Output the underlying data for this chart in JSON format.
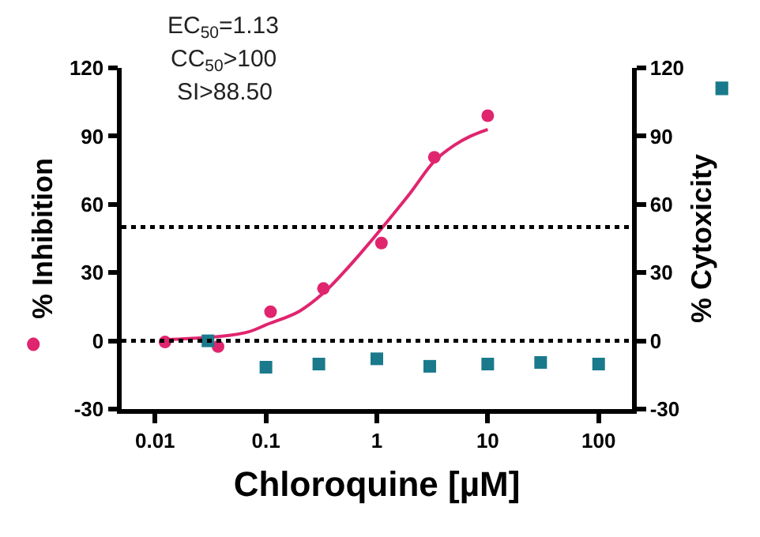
{
  "chart_data": {
    "type": "scatter",
    "xlabel": "Chloroquine [µM]",
    "ylabel": "% Inhibition",
    "y2label": "% Cytoxicity",
    "log": "x",
    "xlim": [
      0.005,
      200
    ],
    "xticks": [
      0.01,
      0.1,
      1,
      10,
      100
    ],
    "ylim": [
      -30,
      120
    ],
    "yticks": [
      -30,
      0,
      30,
      60,
      90,
      120
    ],
    "y2lim": [
      -30,
      120
    ],
    "y2ticks": [
      -30,
      0,
      30,
      60,
      90,
      120
    ],
    "series": [
      {
        "marker": "circle",
        "color": "#e0256f",
        "axis": "y",
        "x": [
          0.0123,
          0.037,
          0.11,
          0.33,
          1.1,
          3.3,
          10
        ],
        "values": [
          -0.5,
          -2.5,
          12.8,
          23,
          43,
          80.7,
          99
        ]
      },
      {
        "type": "line",
        "marker": "none",
        "color": "#e0256f",
        "axis": "y",
        "x": [
          0.0123,
          0.02,
          0.04,
          0.07,
          0.1,
          0.2,
          0.33,
          0.5,
          0.7,
          1.13,
          2,
          3.3,
          5,
          7,
          10
        ],
        "values": [
          0.5,
          1,
          2,
          4,
          7,
          13,
          21,
          30,
          38,
          50,
          65,
          79,
          86,
          90,
          93
        ]
      },
      {
        "marker": "square",
        "color": "#1a7a8c",
        "axis": "y2",
        "x": [
          0.03,
          0.1,
          0.3,
          1,
          3,
          10,
          30,
          100
        ],
        "values": [
          0,
          -11.6,
          -10.2,
          -7.9,
          -11.2,
          -10.2,
          -9.5,
          -10.2
        ]
      }
    ],
    "ref_lines": [
      {
        "axis": "y",
        "value": 50,
        "line_style": "dotted",
        "color": "#000000"
      },
      {
        "axis": "y",
        "value": 0,
        "line_style": "dotted",
        "color": "#000000"
      }
    ],
    "annotations": [
      "EC$_{50}$=1.13",
      "CC$_{50}$>100",
      "SI>88.50"
    ]
  }
}
